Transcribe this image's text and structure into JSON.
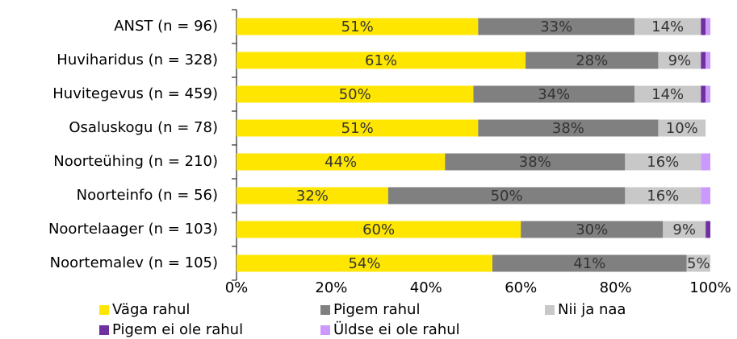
{
  "chart_data": {
    "type": "stacked-bar-horizontal",
    "categories": [
      "ANST (n = 96)",
      "Huviharidus (n = 328)",
      "Huvitegevus (n = 459)",
      "Osaluskogu (n = 78)",
      "Noorteühing (n = 210)",
      "Noorteinfo (n = 56)",
      "Noortelaager (n = 103)",
      "Noortemalev (n = 105)"
    ],
    "series": [
      {
        "name": "Väga rahul",
        "color": "#ffe600",
        "values": [
          51,
          61,
          50,
          51,
          44,
          32,
          60,
          54
        ],
        "value_labels": [
          "51%",
          "61%",
          "50%",
          "51%",
          "44%",
          "32%",
          "60%",
          "54%"
        ]
      },
      {
        "name": "Pigem rahul",
        "color": "#808080",
        "values": [
          33,
          28,
          34,
          38,
          38,
          50,
          30,
          41
        ],
        "value_labels": [
          "33%",
          "28%",
          "34%",
          "38%",
          "38%",
          "50%",
          "30%",
          "41%"
        ]
      },
      {
        "name": "Nii ja naa",
        "color": "#c8c8c8",
        "values": [
          14,
          9,
          14,
          10,
          16,
          16,
          9,
          5
        ],
        "value_labels": [
          "14%",
          "9%",
          "14%",
          "10%",
          "16%",
          "16%",
          "9%",
          "5%"
        ]
      },
      {
        "name": "Pigem ei ole rahul",
        "color": "#7030a0",
        "values": [
          1,
          1,
          1,
          0,
          0,
          0,
          1,
          0
        ]
      },
      {
        "name": "Üldse ei ole rahul",
        "color": "#cc99ff",
        "values": [
          1,
          1,
          1,
          0,
          2,
          2,
          0,
          0
        ]
      }
    ],
    "xlim": [
      0,
      100
    ],
    "xticks": [
      {
        "value": 0,
        "label": "0%"
      },
      {
        "value": 20,
        "label": "20%"
      },
      {
        "value": 40,
        "label": "40%"
      },
      {
        "value": 60,
        "label": "60%"
      },
      {
        "value": 80,
        "label": "80%"
      },
      {
        "value": 100,
        "label": "100%"
      }
    ],
    "grid": false
  }
}
